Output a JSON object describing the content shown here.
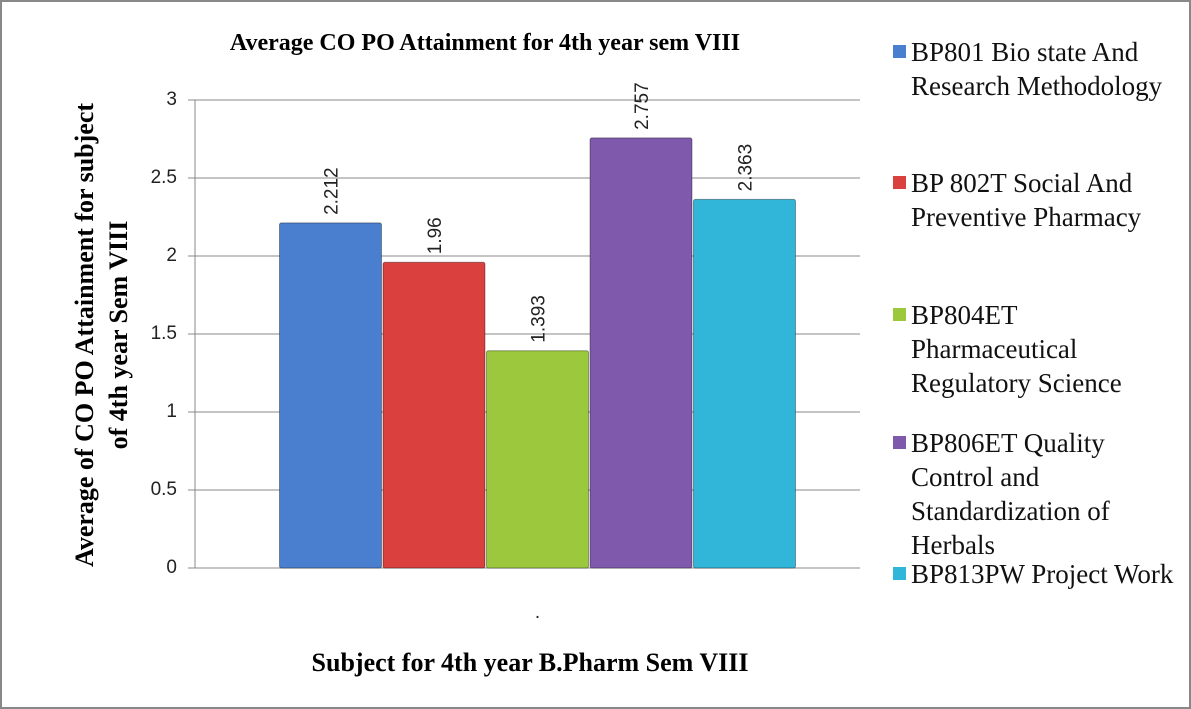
{
  "chart_data": {
    "type": "bar",
    "title": "Average CO PO Attainment for 4th year sem VIII",
    "x_label": "Subject for 4th year B.Pharm Sem VIII",
    "y_label": "Average of CO PO Attainment for subject of 4th year Sem VIII",
    "categories": [
      "."
    ],
    "series": [
      {
        "name": "BP801 Bio state And Research Methodology",
        "color": "#4a7fd0",
        "values": [
          2.212
        ]
      },
      {
        "name": "BP 802T Social And Preventive Pharmacy",
        "color": "#d9403e",
        "values": [
          1.96
        ]
      },
      {
        "name": "BP804ET Pharmaceutical Regulatory Science",
        "color": "#9bc83c",
        "values": [
          1.393
        ]
      },
      {
        "name": "BP806ET Quality Control and Standardization of Herbals",
        "color": "#7f5aac",
        "values": [
          2.757
        ]
      },
      {
        "name": "BP813PW Project Work",
        "color": "#31b5d8",
        "values": [
          2.363
        ]
      }
    ],
    "ylim": [
      0,
      3
    ],
    "yticks": [
      0,
      0.5,
      1,
      1.5,
      2,
      2.5,
      3
    ],
    "grid": true,
    "legend": "right"
  }
}
